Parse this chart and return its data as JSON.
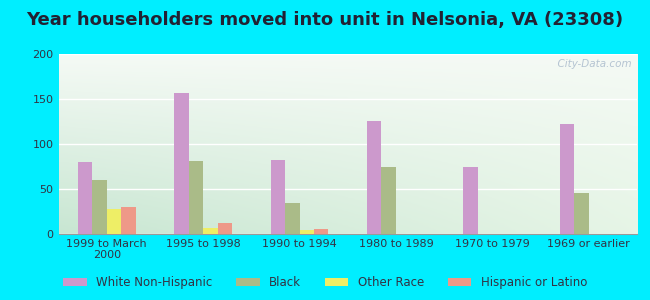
{
  "title": "Year householders moved into unit in Nelsonia, VA (23308)",
  "categories": [
    "1999 to March\n2000",
    "1995 to 1998",
    "1990 to 1994",
    "1980 to 1989",
    "1970 to 1979",
    "1969 or earlier"
  ],
  "series": {
    "White Non-Hispanic": [
      80,
      157,
      82,
      126,
      75,
      122
    ],
    "Black": [
      60,
      81,
      35,
      74,
      0,
      46
    ],
    "Other Race": [
      28,
      7,
      4,
      0,
      0,
      0
    ],
    "Hispanic or Latino": [
      30,
      12,
      6,
      0,
      0,
      0
    ]
  },
  "colors": {
    "White Non-Hispanic": "#cc99cc",
    "Black": "#aabb88",
    "Other Race": "#eeee66",
    "Hispanic or Latino": "#ee9988"
  },
  "ylim": [
    0,
    200
  ],
  "yticks": [
    0,
    50,
    100,
    150,
    200
  ],
  "outer_background": "#00eeff",
  "bar_width": 0.15,
  "watermark": "  City-Data.com",
  "title_fontsize": 13,
  "legend_fontsize": 8.5,
  "tick_fontsize": 8
}
